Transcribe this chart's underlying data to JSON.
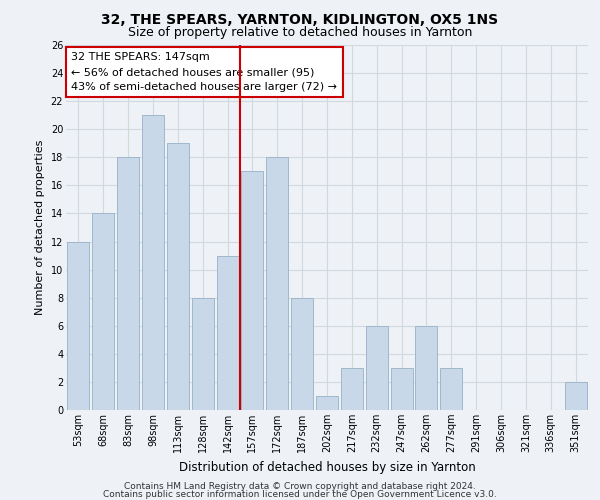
{
  "title": "32, THE SPEARS, YARNTON, KIDLINGTON, OX5 1NS",
  "subtitle": "Size of property relative to detached houses in Yarnton",
  "xlabel": "Distribution of detached houses by size in Yarnton",
  "ylabel": "Number of detached properties",
  "categories": [
    "53sqm",
    "68sqm",
    "83sqm",
    "98sqm",
    "113sqm",
    "128sqm",
    "142sqm",
    "157sqm",
    "172sqm",
    "187sqm",
    "202sqm",
    "217sqm",
    "232sqm",
    "247sqm",
    "262sqm",
    "277sqm",
    "291sqm",
    "306sqm",
    "321sqm",
    "336sqm",
    "351sqm"
  ],
  "values": [
    12,
    14,
    18,
    21,
    19,
    8,
    11,
    17,
    18,
    8,
    1,
    3,
    6,
    3,
    6,
    3,
    0,
    0,
    0,
    0,
    2
  ],
  "bar_color": "#c8d8e8",
  "bar_edge_color": "#a0b8cc",
  "ref_line_color": "#cc0000",
  "annotation_text_line1": "32 THE SPEARS: 147sqm",
  "annotation_text_line2": "← 56% of detached houses are smaller (95)",
  "annotation_text_line3": "43% of semi-detached houses are larger (72) →",
  "annotation_box_color": "#ffffff",
  "annotation_box_edge": "#cc0000",
  "ylim": [
    0,
    26
  ],
  "yticks": [
    0,
    2,
    4,
    6,
    8,
    10,
    12,
    14,
    16,
    18,
    20,
    22,
    24,
    26
  ],
  "grid_color": "#d0d8e0",
  "background_color": "#eef2f7",
  "footer_line1": "Contains HM Land Registry data © Crown copyright and database right 2024.",
  "footer_line2": "Contains public sector information licensed under the Open Government Licence v3.0.",
  "title_fontsize": 10,
  "subtitle_fontsize": 9,
  "annotation_fontsize": 8,
  "tick_fontsize": 7,
  "ylabel_fontsize": 8,
  "xlabel_fontsize": 8.5,
  "footer_fontsize": 6.5
}
